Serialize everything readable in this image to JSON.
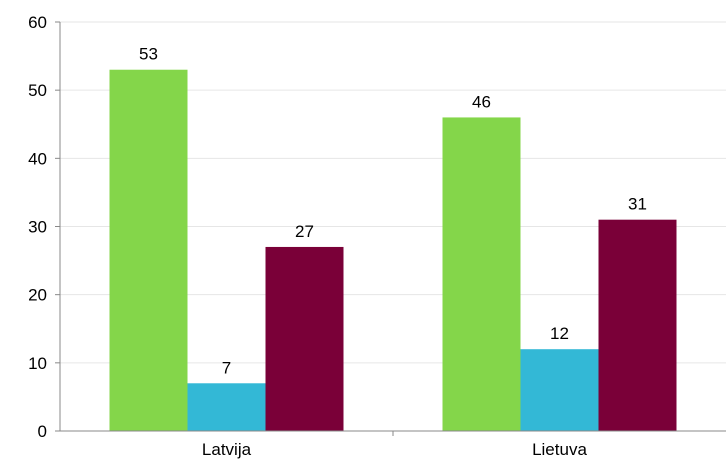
{
  "chart_data": {
    "type": "bar",
    "categories": [
      "Latvija",
      "Lietuva"
    ],
    "series": [
      {
        "values": [
          53,
          46
        ],
        "color": "#84D64A"
      },
      {
        "values": [
          7,
          12
        ],
        "color": "#33B8D6"
      },
      {
        "values": [
          27,
          31
        ],
        "color": "#7A0038"
      }
    ],
    "yticks": [
      "0",
      "10",
      "20",
      "30",
      "40",
      "50",
      "60"
    ],
    "ylim": [
      0,
      60
    ],
    "grid": true,
    "legend": "none",
    "title": "",
    "xlabel": "",
    "ylabel": ""
  }
}
